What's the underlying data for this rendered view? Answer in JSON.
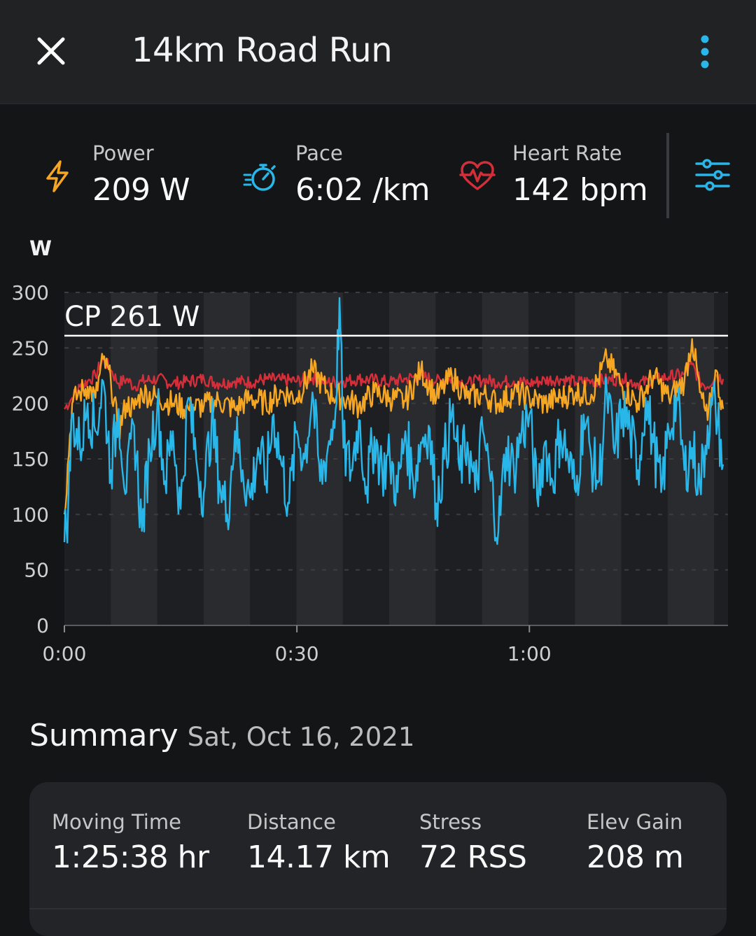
{
  "header": {
    "title": "14km Road Run",
    "close_icon": "close-icon",
    "menu_icon": "more-vertical-icon"
  },
  "metrics": [
    {
      "label": "Power",
      "value": "209 W",
      "icon": "lightning-bolt-icon",
      "color": "#f5a623"
    },
    {
      "label": "Pace",
      "value": "6:02 /km",
      "icon": "stopwatch-icon",
      "color": "#29b6e8"
    },
    {
      "label": "Heart Rate",
      "value": "142 bpm",
      "icon": "heart-rate-icon",
      "color": "#d32f3a"
    }
  ],
  "settings_icon": "sliders-icon",
  "chart_data": {
    "type": "line",
    "ylabel": "W",
    "ylim": [
      0,
      300
    ],
    "yticks": [
      "0",
      "50",
      "100",
      "150",
      "200",
      "250",
      "300"
    ],
    "xticks": [
      {
        "minutes": 0,
        "label": "0:00"
      },
      {
        "minutes": 30,
        "label": "0:30"
      },
      {
        "minutes": 60,
        "label": "1:00"
      }
    ],
    "xlim_minutes": [
      0,
      85.63
    ],
    "cp_line": {
      "value": 261,
      "label": "CP 261 W",
      "color": "#ffffff"
    },
    "series": [
      {
        "color": "#d32f3a",
        "x": [
          0,
          1,
          2,
          3,
          4,
          5,
          6,
          7,
          8,
          9,
          10,
          12,
          14,
          16,
          18,
          20,
          22,
          24,
          26,
          28,
          30,
          32,
          34,
          36,
          38,
          40,
          42,
          44,
          46,
          48,
          50,
          52,
          54,
          56,
          58,
          60,
          62,
          64,
          66,
          68,
          70,
          72,
          74,
          76,
          78,
          80,
          81,
          82,
          83,
          84,
          85
        ],
        "y": [
          195,
          205,
          215,
          220,
          225,
          240,
          230,
          218,
          222,
          215,
          220,
          222,
          218,
          220,
          222,
          218,
          220,
          219,
          222,
          221,
          220,
          223,
          219,
          220,
          222,
          221,
          219,
          222,
          225,
          220,
          222,
          218,
          221,
          219,
          220,
          218,
          221,
          222,
          219,
          220,
          221,
          222,
          218,
          221,
          224,
          226,
          235,
          220,
          215,
          226,
          222
        ]
      },
      {
        "color": "#f5a623",
        "x": [
          0,
          1,
          2,
          3,
          4,
          5,
          6,
          7,
          8,
          9,
          10,
          12,
          14,
          16,
          18,
          20,
          22,
          24,
          26,
          28,
          30,
          32,
          34,
          36,
          38,
          40,
          42,
          44,
          46,
          48,
          50,
          52,
          54,
          56,
          58,
          60,
          62,
          64,
          66,
          68,
          70,
          72,
          74,
          76,
          78,
          80,
          81,
          82,
          83,
          84,
          85
        ],
        "y": [
          100,
          200,
          210,
          215,
          205,
          240,
          220,
          175,
          200,
          195,
          210,
          205,
          200,
          195,
          198,
          202,
          195,
          205,
          200,
          210,
          205,
          230,
          210,
          205,
          198,
          210,
          205,
          202,
          230,
          205,
          225,
          205,
          208,
          200,
          210,
          205,
          200,
          205,
          210,
          208,
          240,
          215,
          200,
          225,
          205,
          220,
          258,
          210,
          185,
          230,
          195
        ]
      },
      {
        "color": "#29b6e8",
        "x": [
          0,
          0.5,
          1,
          2,
          3,
          4,
          5,
          6,
          7,
          8,
          9,
          10,
          11,
          12,
          13,
          14,
          15,
          16,
          17,
          18,
          19,
          20,
          21,
          22,
          23,
          24,
          25,
          26,
          27,
          28,
          29,
          30,
          31,
          32,
          33,
          34,
          35,
          35.5,
          36,
          37,
          38,
          39,
          40,
          41,
          42,
          43,
          44,
          45,
          46,
          47,
          48,
          49,
          50,
          51,
          52,
          53,
          54,
          55,
          56,
          57,
          58,
          59,
          60,
          61,
          62,
          63,
          64,
          65,
          66,
          67,
          68,
          69,
          70,
          71,
          72,
          73,
          74,
          75,
          76,
          77,
          78,
          79,
          80,
          81,
          82,
          83,
          84,
          85
        ],
        "y": [
          75,
          110,
          190,
          160,
          200,
          175,
          220,
          140,
          195,
          120,
          180,
          85,
          160,
          200,
          130,
          175,
          105,
          205,
          150,
          120,
          185,
          130,
          100,
          175,
          140,
          115,
          160,
          130,
          190,
          145,
          110,
          175,
          150,
          210,
          130,
          160,
          195,
          295,
          160,
          140,
          185,
          125,
          170,
          140,
          150,
          120,
          175,
          130,
          165,
          180,
          110,
          150,
          190,
          140,
          165,
          120,
          175,
          130,
          85,
          160,
          140,
          175,
          190,
          115,
          165,
          130,
          175,
          150,
          120,
          190,
          150,
          130,
          210,
          155,
          195,
          175,
          140,
          205,
          165,
          120,
          175,
          205,
          140,
          160,
          125,
          180,
          200,
          145
        ]
      }
    ]
  },
  "summary": {
    "title": "Summary",
    "date": "Sat, Oct 16, 2021",
    "stats": [
      {
        "label": "Moving Time",
        "value": "1:25:38 hr"
      },
      {
        "label": "Distance",
        "value": "14.17 km"
      },
      {
        "label": "Stress",
        "value": "72 RSS"
      },
      {
        "label": "Elev Gain",
        "value": "208 m"
      }
    ]
  }
}
